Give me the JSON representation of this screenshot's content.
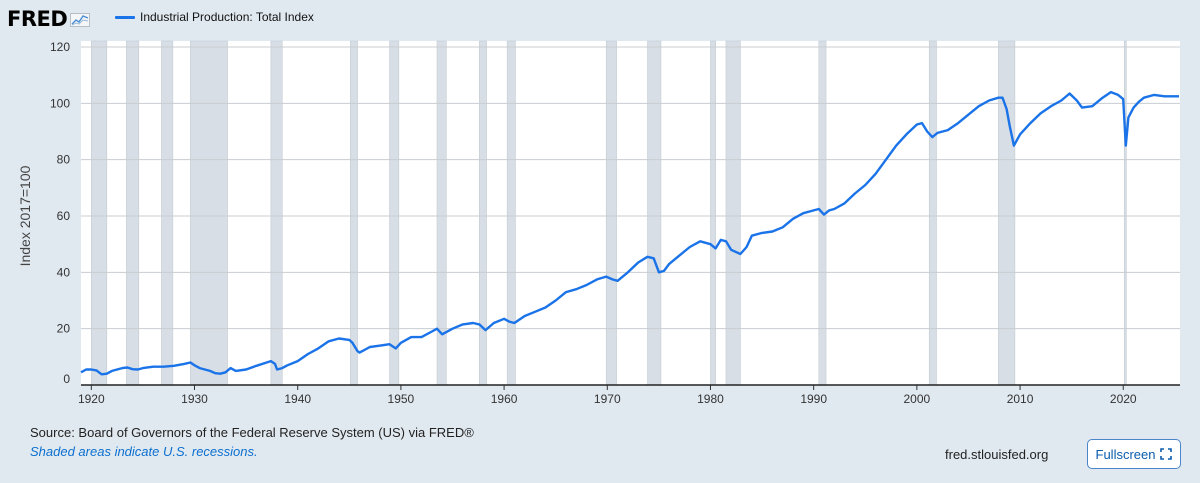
{
  "header": {
    "logo_text": "FRED",
    "legend_label": "Industrial Production: Total Index"
  },
  "footer": {
    "source_text": "Source: Board of Governors of the Federal Reserve System (US) via FRED®",
    "recession_note": "Shaded areas indicate U.S. recessions.",
    "site_url": "fred.stlouisfed.org",
    "fullscreen_label": "Fullscreen",
    "fullscreen_icon": "expand-icon"
  },
  "colors": {
    "series": "#1a73e8",
    "background": "#e1e9f0",
    "plot_background": "#ffffff",
    "recession_shade": "#d8dee5",
    "gridline": "#c8cdd2"
  },
  "chart_data": {
    "type": "line",
    "title": "",
    "xlabel": "",
    "ylabel": "Index 2017=100",
    "xlim": [
      1919.0,
      2025.5
    ],
    "ylim": [
      0,
      120
    ],
    "x_ticks": [
      1920,
      1930,
      1940,
      1950,
      1960,
      1970,
      1980,
      1990,
      2000,
      2010,
      2020
    ],
    "y_ticks": [
      0,
      20,
      40,
      60,
      80,
      100,
      120
    ],
    "grid": true,
    "legend_position": "top-left",
    "recessions": [
      [
        1920.0,
        1921.5
      ],
      [
        1923.4,
        1924.6
      ],
      [
        1926.8,
        1927.9
      ],
      [
        1929.6,
        1933.2
      ],
      [
        1937.4,
        1938.5
      ],
      [
        1945.1,
        1945.8
      ],
      [
        1948.9,
        1949.8
      ],
      [
        1953.5,
        1954.4
      ],
      [
        1957.6,
        1958.3
      ],
      [
        1960.3,
        1961.1
      ],
      [
        1969.9,
        1970.9
      ],
      [
        1973.9,
        1975.2
      ],
      [
        1980.0,
        1980.5
      ],
      [
        1981.5,
        1982.9
      ],
      [
        1990.5,
        1991.2
      ],
      [
        2001.2,
        2001.9
      ],
      [
        2007.9,
        2009.5
      ],
      [
        2020.1,
        2020.3
      ]
    ],
    "series": [
      {
        "name": "Industrial Production: Total Index",
        "x": [
          1919.0,
          1919.5,
          1920.0,
          1920.5,
          1921.0,
          1921.5,
          1922.0,
          1922.5,
          1923.0,
          1923.5,
          1924.0,
          1924.5,
          1925.0,
          1926.0,
          1927.0,
          1928.0,
          1929.0,
          1929.6,
          1930.0,
          1930.5,
          1931.0,
          1931.5,
          1932.0,
          1932.5,
          1933.0,
          1933.5,
          1934.0,
          1935.0,
          1936.0,
          1937.0,
          1937.4,
          1937.8,
          1938.0,
          1938.5,
          1939.0,
          1940.0,
          1941.0,
          1942.0,
          1943.0,
          1944.0,
          1945.0,
          1945.3,
          1945.8,
          1946.0,
          1947.0,
          1948.0,
          1948.9,
          1949.5,
          1950.0,
          1951.0,
          1952.0,
          1953.0,
          1953.5,
          1954.0,
          1955.0,
          1956.0,
          1957.0,
          1957.6,
          1958.2,
          1959.0,
          1960.0,
          1960.5,
          1961.0,
          1962.0,
          1963.0,
          1964.0,
          1965.0,
          1966.0,
          1967.0,
          1968.0,
          1969.0,
          1969.9,
          1970.5,
          1971.0,
          1972.0,
          1973.0,
          1973.9,
          1974.5,
          1975.0,
          1975.5,
          1976.0,
          1977.0,
          1978.0,
          1979.0,
          1980.0,
          1980.5,
          1981.0,
          1981.5,
          1982.0,
          1982.9,
          1983.5,
          1984.0,
          1985.0,
          1986.0,
          1987.0,
          1988.0,
          1989.0,
          1990.0,
          1990.5,
          1991.0,
          1991.5,
          1992.0,
          1993.0,
          1994.0,
          1995.0,
          1996.0,
          1997.0,
          1998.0,
          1999.0,
          2000.0,
          2000.5,
          2001.0,
          2001.5,
          2002.0,
          2003.0,
          2004.0,
          2005.0,
          2006.0,
          2007.0,
          2007.9,
          2008.3,
          2008.7,
          2009.0,
          2009.4,
          2010.0,
          2011.0,
          2012.0,
          2013.0,
          2014.0,
          2014.8,
          2015.5,
          2016.0,
          2017.0,
          2018.0,
          2018.8,
          2019.5,
          2020.0,
          2020.25,
          2020.5,
          2021.0,
          2021.5,
          2022.0,
          2023.0,
          2024.0,
          2025.0,
          2025.4
        ],
        "values": [
          4.5,
          5.5,
          5.5,
          5.2,
          3.8,
          4.0,
          5.0,
          5.5,
          6.0,
          6.2,
          5.6,
          5.5,
          6.0,
          6.5,
          6.5,
          6.8,
          7.5,
          8.0,
          7.0,
          6.0,
          5.5,
          5.0,
          4.2,
          4.0,
          4.5,
          6.0,
          5.0,
          5.5,
          6.8,
          8.0,
          8.5,
          7.5,
          5.5,
          6.0,
          7.0,
          8.5,
          11.0,
          13.0,
          15.5,
          16.5,
          16.0,
          15.0,
          12.0,
          11.5,
          13.5,
          14.0,
          14.5,
          13.0,
          15.0,
          17.0,
          17.0,
          19.0,
          20.0,
          18.0,
          20.0,
          21.5,
          22.0,
          21.5,
          19.5,
          22.0,
          23.5,
          22.5,
          22.0,
          24.5,
          26.0,
          27.5,
          30.0,
          33.0,
          34.0,
          35.5,
          37.5,
          38.5,
          37.5,
          37.0,
          40.0,
          43.5,
          45.5,
          45.0,
          40.0,
          40.5,
          43.0,
          46.0,
          49.0,
          51.0,
          50.0,
          48.5,
          51.5,
          51.0,
          48.0,
          46.5,
          49.0,
          53.0,
          54.0,
          54.5,
          56.0,
          59.0,
          61.0,
          62.0,
          62.5,
          60.5,
          62.0,
          62.5,
          64.5,
          68.0,
          71.0,
          75.0,
          80.0,
          85.0,
          89.0,
          92.5,
          93.0,
          90.0,
          88.0,
          89.5,
          90.5,
          93.0,
          96.0,
          99.0,
          101.0,
          102.0,
          102.0,
          98.0,
          92.0,
          85.0,
          89.0,
          93.0,
          96.5,
          99.0,
          101.0,
          103.5,
          101.0,
          98.5,
          99.0,
          102.0,
          104.0,
          103.0,
          101.5,
          85.0,
          95.0,
          98.5,
          100.5,
          102.0,
          103.0,
          102.5,
          102.5,
          102.5
        ]
      }
    ]
  }
}
